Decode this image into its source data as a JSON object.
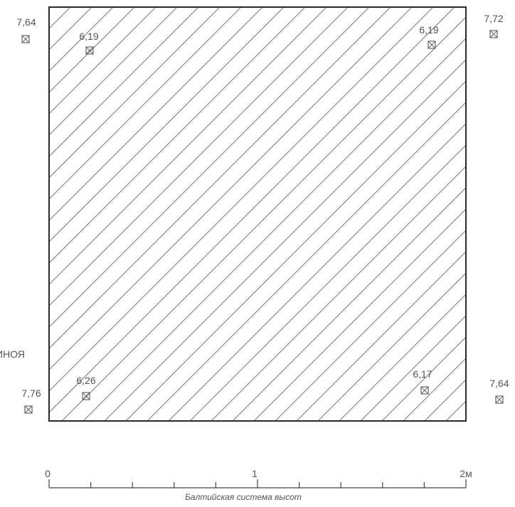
{
  "plan": {
    "elevations": {
      "outer_top_left": "7,64",
      "inner_top_left": "6,19",
      "inner_top_right": "6,19",
      "outer_top_right": "7,72",
      "inner_bottom_left": "6,26",
      "outer_bottom_left": "7,76",
      "inner_bottom_right": "6,17",
      "outer_bottom_right": "7,64"
    },
    "left_label_fragment": "ИНОЯ",
    "colors": {
      "line": "#2a2a2a",
      "hatch": "#7a7a7a",
      "text": "#555555"
    }
  },
  "scale": {
    "label_zero": "0",
    "label_one": "1",
    "label_two": "2м",
    "caption": "Балтийская система высот"
  }
}
